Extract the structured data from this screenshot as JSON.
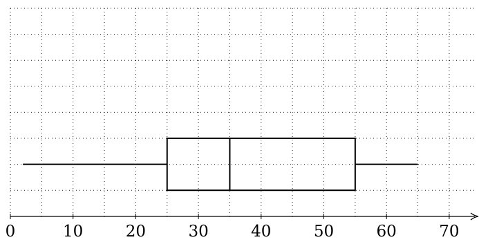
{
  "chart_data": {
    "type": "boxplot",
    "orientation": "horizontal",
    "title": "",
    "xlabel": "",
    "ylabel": "",
    "xlim": [
      0,
      75
    ],
    "x_ticks": [
      0,
      10,
      20,
      30,
      40,
      50,
      60,
      70
    ],
    "x_tick_labels": [
      "0",
      "10",
      "20",
      "30",
      "40",
      "50",
      "60",
      "70"
    ],
    "x_grid_step": 5,
    "y_grid_lines": 8,
    "grid": true,
    "grid_style": "dotted",
    "axis_arrow": true,
    "series": [
      {
        "min": 2,
        "q1": 25,
        "median": 35,
        "q3": 55,
        "max": 65
      }
    ]
  }
}
